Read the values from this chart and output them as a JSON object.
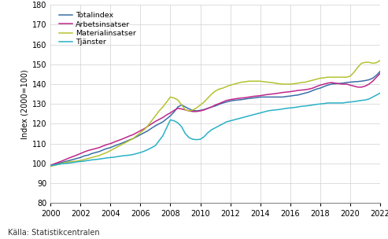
{
  "ylabel": "Index (2000=100)",
  "source": "Källa: Statistikcentralen",
  "xlim": [
    2000,
    2022
  ],
  "ylim": [
    80,
    180
  ],
  "yticks": [
    80,
    90,
    100,
    110,
    120,
    130,
    140,
    150,
    160,
    170,
    180
  ],
  "xticks": [
    2000,
    2002,
    2004,
    2006,
    2008,
    2010,
    2012,
    2014,
    2016,
    2018,
    2020,
    2022
  ],
  "series": {
    "Totalindex": {
      "color": "#3a6ea5",
      "linewidth": 1.1,
      "years": [
        2000.0,
        2000.25,
        2000.5,
        2000.75,
        2001.0,
        2001.25,
        2001.5,
        2001.75,
        2002.0,
        2002.25,
        2002.5,
        2002.75,
        2003.0,
        2003.25,
        2003.5,
        2003.75,
        2004.0,
        2004.25,
        2004.5,
        2004.75,
        2005.0,
        2005.25,
        2005.5,
        2005.75,
        2006.0,
        2006.25,
        2006.5,
        2006.75,
        2007.0,
        2007.25,
        2007.5,
        2007.75,
        2008.0,
        2008.25,
        2008.5,
        2008.75,
        2009.0,
        2009.25,
        2009.5,
        2009.75,
        2010.0,
        2010.25,
        2010.5,
        2010.75,
        2011.0,
        2011.25,
        2011.5,
        2011.75,
        2012.0,
        2012.25,
        2012.5,
        2012.75,
        2013.0,
        2013.25,
        2013.5,
        2013.75,
        2014.0,
        2014.25,
        2014.5,
        2014.75,
        2015.0,
        2015.25,
        2015.5,
        2015.75,
        2016.0,
        2016.25,
        2016.5,
        2016.75,
        2017.0,
        2017.25,
        2017.5,
        2017.75,
        2018.0,
        2018.25,
        2018.5,
        2018.75,
        2019.0,
        2019.25,
        2019.5,
        2019.75,
        2020.0,
        2020.25,
        2020.5,
        2020.75,
        2021.0,
        2021.25,
        2021.5,
        2021.75,
        2022.0
      ],
      "values": [
        99.0,
        99.5,
        100.0,
        100.5,
        101.0,
        101.5,
        102.0,
        102.5,
        103.0,
        103.8,
        104.2,
        105.0,
        105.5,
        106.0,
        106.8,
        107.5,
        108.0,
        108.8,
        109.5,
        110.2,
        111.0,
        111.8,
        112.5,
        113.5,
        114.5,
        115.5,
        116.5,
        117.8,
        119.0,
        120.0,
        121.0,
        122.5,
        124.0,
        126.0,
        128.5,
        129.5,
        128.5,
        127.5,
        126.8,
        126.5,
        126.8,
        127.2,
        127.8,
        128.5,
        129.0,
        129.8,
        130.5,
        131.0,
        131.5,
        131.8,
        132.0,
        132.2,
        132.5,
        132.8,
        133.0,
        133.2,
        133.5,
        133.5,
        133.5,
        133.5,
        133.5,
        133.5,
        133.5,
        133.8,
        134.0,
        134.3,
        134.5,
        135.0,
        135.5,
        136.0,
        136.8,
        137.5,
        138.0,
        138.8,
        139.5,
        140.0,
        140.2,
        140.3,
        140.5,
        140.8,
        141.0,
        141.2,
        141.3,
        141.5,
        141.8,
        142.2,
        143.0,
        144.5,
        146.5
      ]
    },
    "Arbetsinsatser": {
      "color": "#c0268a",
      "linewidth": 1.1,
      "years": [
        2000.0,
        2000.25,
        2000.5,
        2000.75,
        2001.0,
        2001.25,
        2001.5,
        2001.75,
        2002.0,
        2002.25,
        2002.5,
        2002.75,
        2003.0,
        2003.25,
        2003.5,
        2003.75,
        2004.0,
        2004.25,
        2004.5,
        2004.75,
        2005.0,
        2005.25,
        2005.5,
        2005.75,
        2006.0,
        2006.25,
        2006.5,
        2006.75,
        2007.0,
        2007.25,
        2007.5,
        2007.75,
        2008.0,
        2008.25,
        2008.5,
        2008.75,
        2009.0,
        2009.25,
        2009.5,
        2009.75,
        2010.0,
        2010.25,
        2010.5,
        2010.75,
        2011.0,
        2011.25,
        2011.5,
        2011.75,
        2012.0,
        2012.25,
        2012.5,
        2012.75,
        2013.0,
        2013.25,
        2013.5,
        2013.75,
        2014.0,
        2014.25,
        2014.5,
        2014.75,
        2015.0,
        2015.25,
        2015.5,
        2015.75,
        2016.0,
        2016.25,
        2016.5,
        2016.75,
        2017.0,
        2017.25,
        2017.5,
        2017.75,
        2018.0,
        2018.25,
        2018.5,
        2018.75,
        2019.0,
        2019.25,
        2019.5,
        2019.75,
        2020.0,
        2020.25,
        2020.5,
        2020.75,
        2021.0,
        2021.25,
        2021.5,
        2021.75,
        2022.0
      ],
      "values": [
        99.0,
        99.8,
        100.5,
        101.2,
        102.0,
        102.8,
        103.5,
        104.2,
        105.0,
        105.8,
        106.5,
        107.0,
        107.5,
        108.0,
        108.8,
        109.5,
        110.0,
        110.8,
        111.5,
        112.2,
        113.0,
        113.8,
        114.5,
        115.5,
        116.5,
        117.5,
        118.8,
        120.0,
        121.2,
        122.2,
        123.2,
        124.5,
        125.5,
        126.8,
        127.8,
        127.5,
        127.0,
        126.5,
        126.2,
        126.2,
        126.5,
        127.0,
        127.8,
        128.5,
        129.5,
        130.2,
        131.0,
        131.8,
        132.2,
        132.5,
        132.8,
        133.0,
        133.2,
        133.5,
        133.8,
        134.0,
        134.2,
        134.5,
        134.8,
        135.0,
        135.2,
        135.5,
        135.8,
        136.0,
        136.2,
        136.5,
        136.8,
        137.0,
        137.2,
        137.5,
        138.0,
        138.8,
        139.5,
        140.0,
        140.5,
        140.8,
        140.5,
        140.2,
        140.0,
        140.0,
        139.5,
        139.0,
        138.5,
        138.5,
        139.0,
        140.0,
        141.5,
        143.5,
        145.5
      ]
    },
    "Materialinsatser": {
      "color": "#b5c232",
      "linewidth": 1.1,
      "years": [
        2000.0,
        2000.25,
        2000.5,
        2000.75,
        2001.0,
        2001.25,
        2001.5,
        2001.75,
        2002.0,
        2002.25,
        2002.5,
        2002.75,
        2003.0,
        2003.25,
        2003.5,
        2003.75,
        2004.0,
        2004.25,
        2004.5,
        2004.75,
        2005.0,
        2005.25,
        2005.5,
        2005.75,
        2006.0,
        2006.25,
        2006.5,
        2006.75,
        2007.0,
        2007.25,
        2007.5,
        2007.75,
        2008.0,
        2008.25,
        2008.5,
        2008.75,
        2009.0,
        2009.25,
        2009.5,
        2009.75,
        2010.0,
        2010.25,
        2010.5,
        2010.75,
        2011.0,
        2011.25,
        2011.5,
        2011.75,
        2012.0,
        2012.25,
        2012.5,
        2012.75,
        2013.0,
        2013.25,
        2013.5,
        2013.75,
        2014.0,
        2014.25,
        2014.5,
        2014.75,
        2015.0,
        2015.25,
        2015.5,
        2015.75,
        2016.0,
        2016.25,
        2016.5,
        2016.75,
        2017.0,
        2017.25,
        2017.5,
        2017.75,
        2018.0,
        2018.25,
        2018.5,
        2018.75,
        2019.0,
        2019.25,
        2019.5,
        2019.75,
        2020.0,
        2020.25,
        2020.5,
        2020.75,
        2021.0,
        2021.25,
        2021.5,
        2021.75,
        2022.0
      ],
      "values": [
        98.5,
        99.0,
        99.5,
        100.0,
        100.5,
        100.8,
        101.0,
        101.2,
        101.5,
        102.0,
        102.5,
        103.0,
        103.5,
        104.0,
        104.8,
        105.5,
        106.5,
        107.5,
        108.5,
        109.5,
        110.5,
        111.5,
        112.5,
        114.0,
        115.5,
        117.0,
        119.0,
        121.5,
        124.0,
        126.5,
        128.5,
        131.0,
        133.5,
        133.0,
        132.0,
        129.5,
        127.0,
        126.5,
        127.0,
        128.0,
        129.5,
        131.0,
        133.0,
        135.0,
        136.5,
        137.5,
        138.0,
        138.8,
        139.5,
        140.0,
        140.5,
        141.0,
        141.2,
        141.5,
        141.5,
        141.5,
        141.5,
        141.2,
        141.0,
        140.8,
        140.5,
        140.2,
        140.0,
        140.0,
        140.0,
        140.2,
        140.5,
        140.8,
        141.0,
        141.5,
        142.0,
        142.5,
        143.0,
        143.2,
        143.5,
        143.5,
        143.5,
        143.5,
        143.5,
        143.5,
        144.0,
        146.0,
        148.5,
        150.5,
        151.0,
        151.0,
        150.5,
        150.8,
        152.0
      ]
    },
    "Tjänster": {
      "color": "#2ab0c5",
      "linewidth": 1.1,
      "years": [
        2000.0,
        2000.25,
        2000.5,
        2000.75,
        2001.0,
        2001.25,
        2001.5,
        2001.75,
        2002.0,
        2002.25,
        2002.5,
        2002.75,
        2003.0,
        2003.25,
        2003.5,
        2003.75,
        2004.0,
        2004.25,
        2004.5,
        2004.75,
        2005.0,
        2005.25,
        2005.5,
        2005.75,
        2006.0,
        2006.25,
        2006.5,
        2006.75,
        2007.0,
        2007.25,
        2007.5,
        2007.75,
        2008.0,
        2008.25,
        2008.5,
        2008.75,
        2009.0,
        2009.25,
        2009.5,
        2009.75,
        2010.0,
        2010.25,
        2010.5,
        2010.75,
        2011.0,
        2011.25,
        2011.5,
        2011.75,
        2012.0,
        2012.25,
        2012.5,
        2012.75,
        2013.0,
        2013.25,
        2013.5,
        2013.75,
        2014.0,
        2014.25,
        2014.5,
        2014.75,
        2015.0,
        2015.25,
        2015.5,
        2015.75,
        2016.0,
        2016.25,
        2016.5,
        2016.75,
        2017.0,
        2017.25,
        2017.5,
        2017.75,
        2018.0,
        2018.25,
        2018.5,
        2018.75,
        2019.0,
        2019.25,
        2019.5,
        2019.75,
        2020.0,
        2020.25,
        2020.5,
        2020.75,
        2021.0,
        2021.25,
        2021.5,
        2021.75,
        2022.0
      ],
      "values": [
        99.0,
        99.2,
        99.5,
        99.8,
        100.0,
        100.2,
        100.5,
        100.8,
        101.0,
        101.2,
        101.5,
        101.8,
        102.0,
        102.2,
        102.5,
        102.8,
        103.0,
        103.2,
        103.5,
        103.8,
        104.0,
        104.2,
        104.5,
        105.0,
        105.5,
        106.2,
        107.0,
        108.0,
        109.0,
        111.5,
        114.0,
        118.0,
        122.0,
        121.5,
        120.5,
        118.5,
        115.0,
        113.0,
        112.2,
        112.0,
        112.2,
        113.5,
        115.5,
        117.0,
        118.0,
        119.0,
        120.0,
        121.0,
        121.5,
        122.0,
        122.5,
        123.0,
        123.5,
        124.0,
        124.5,
        125.0,
        125.5,
        126.0,
        126.5,
        126.8,
        127.0,
        127.2,
        127.5,
        127.8,
        128.0,
        128.2,
        128.5,
        128.8,
        129.0,
        129.2,
        129.5,
        129.8,
        130.0,
        130.2,
        130.5,
        130.5,
        130.5,
        130.5,
        130.5,
        130.8,
        131.0,
        131.2,
        131.5,
        131.8,
        132.0,
        132.5,
        133.5,
        134.5,
        135.5
      ]
    }
  },
  "background_color": "#ffffff",
  "grid_color": "#cccccc"
}
